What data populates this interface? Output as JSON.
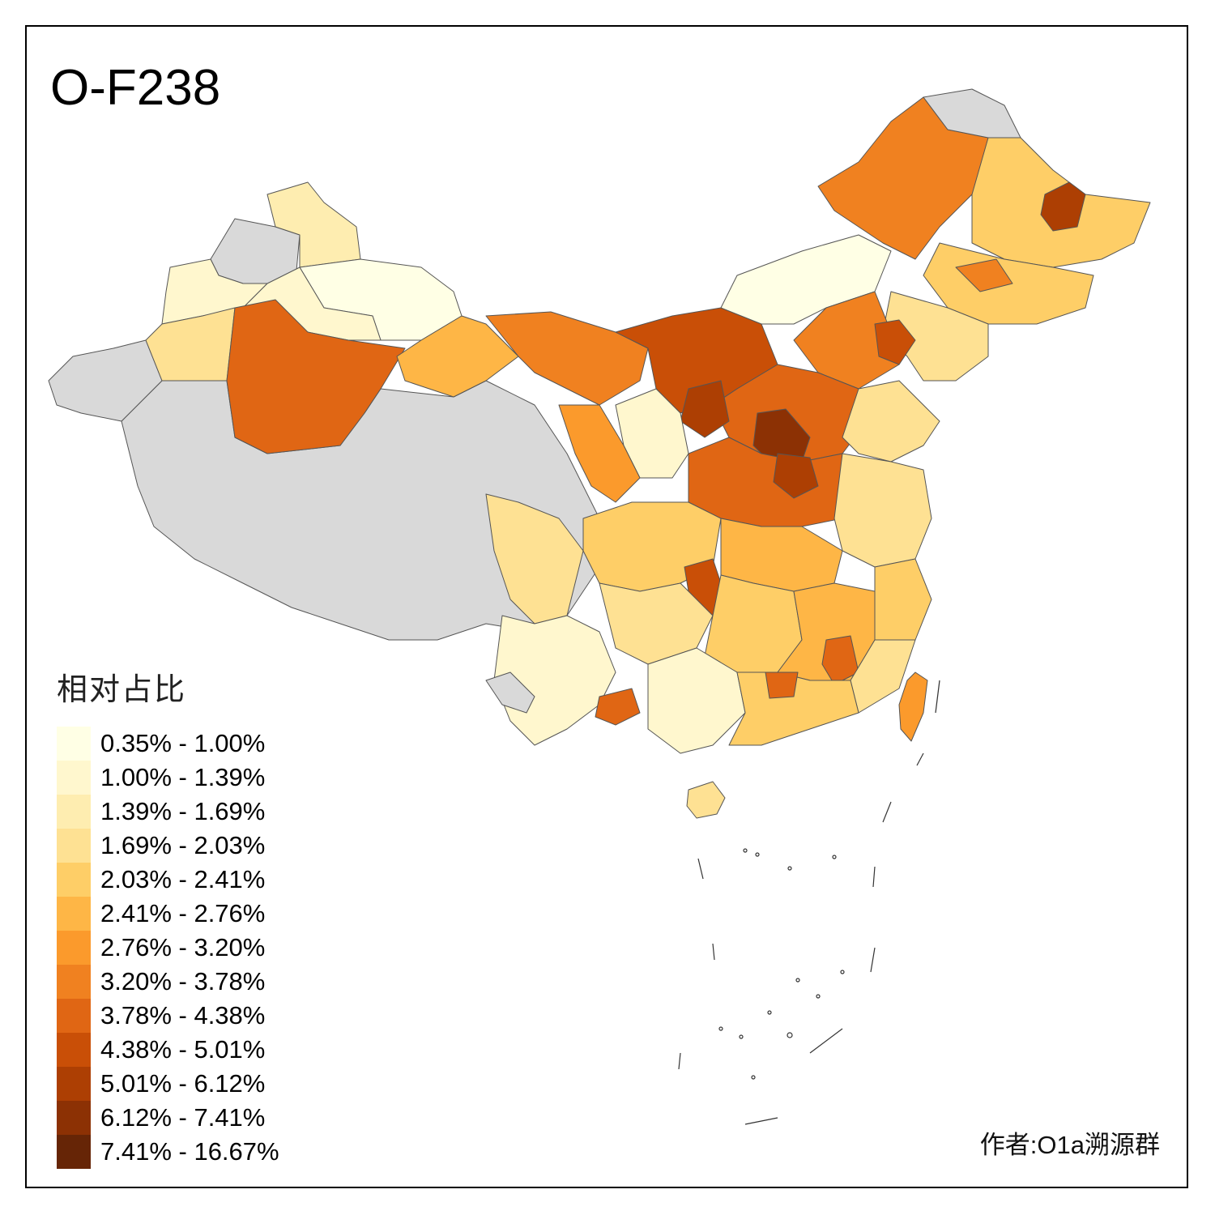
{
  "title": "O-F238",
  "legend": {
    "title": "相对占比",
    "bins": [
      {
        "label": "0.35% - 1.00%",
        "color": "#FFFFE5"
      },
      {
        "label": "1.00% - 1.39%",
        "color": "#FFF7CE"
      },
      {
        "label": "1.39% - 1.69%",
        "color": "#FEEDB0"
      },
      {
        "label": "1.69% - 2.03%",
        "color": "#FEE193"
      },
      {
        "label": "2.03% - 2.41%",
        "color": "#FECE67"
      },
      {
        "label": "2.41% - 2.76%",
        "color": "#FEB646"
      },
      {
        "label": "2.76% - 3.20%",
        "color": "#FB9A2C"
      },
      {
        "label": "3.20% - 3.78%",
        "color": "#F08120"
      },
      {
        "label": "3.78% - 4.38%",
        "color": "#E06614"
      },
      {
        "label": "4.38% - 5.01%",
        "color": "#C94F07"
      },
      {
        "label": "5.01% - 6.12%",
        "color": "#AD3F03"
      },
      {
        "label": "6.12% - 7.41%",
        "color": "#8C3104"
      },
      {
        "label": "7.41% - 16.67%",
        "color": "#662506"
      }
    ],
    "no_data_color": "#D9D9D9"
  },
  "credit": "作者:O1a溯源群"
}
